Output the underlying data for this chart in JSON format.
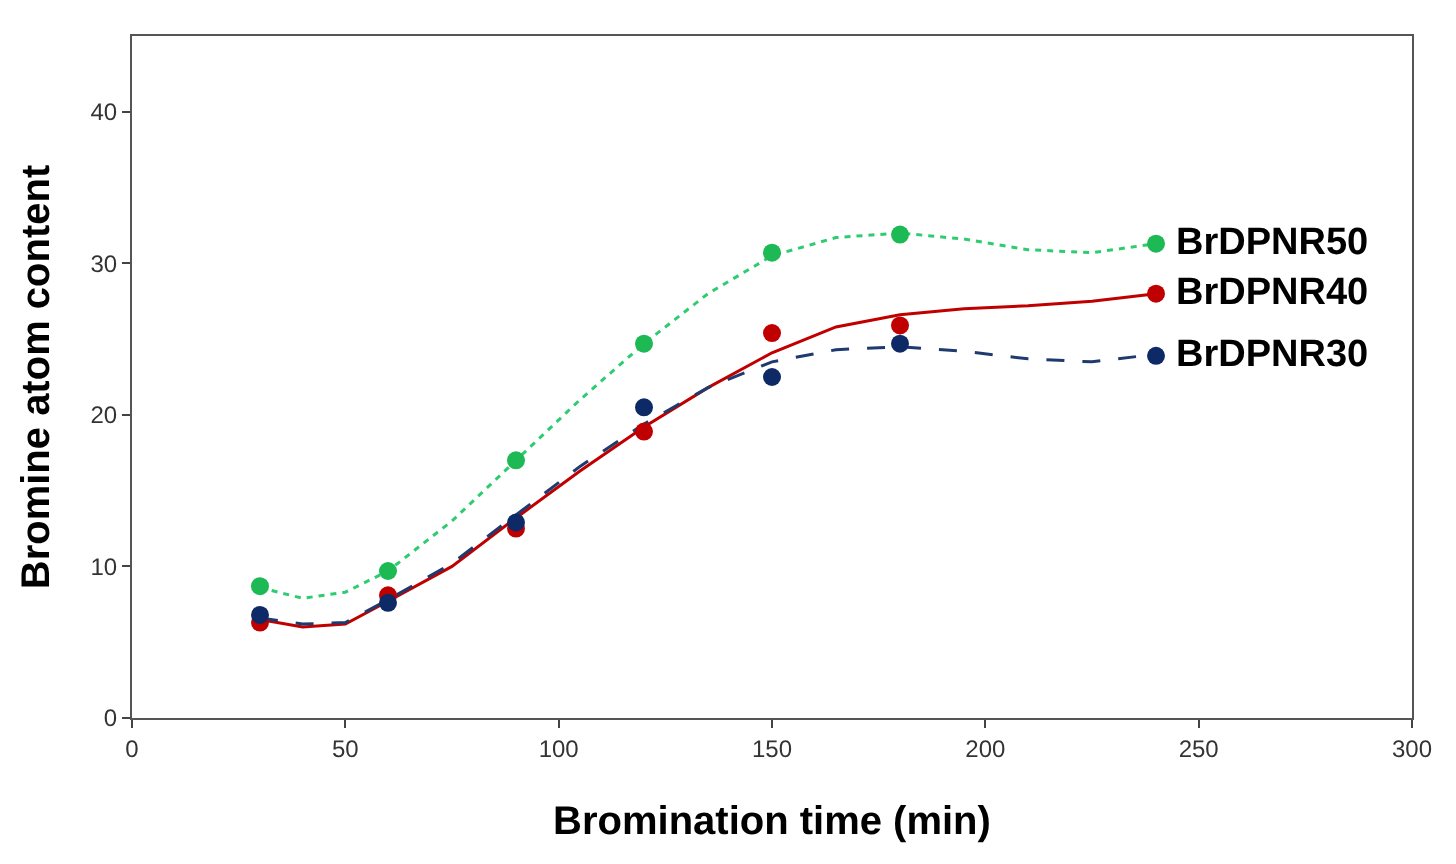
{
  "chart_data": {
    "type": "scatter",
    "xlabel": "Bromination time (min)",
    "ylabel": "Bromine atom content",
    "xlim": [
      0,
      300
    ],
    "ylim": [
      0,
      45
    ],
    "xticks": [
      0,
      50,
      100,
      150,
      200,
      250,
      300
    ],
    "yticks": [
      0,
      10,
      20,
      30,
      40
    ],
    "legend": false,
    "marker": "circle",
    "series": [
      {
        "type": "line",
        "color": "#2ecc71",
        "line_style": "dotted",
        "marker": "none",
        "x": [
          30,
          40,
          50,
          60,
          75,
          90,
          105,
          120,
          135,
          150,
          165,
          180,
          195,
          210,
          225,
          240
        ],
        "values": [
          8.6,
          7.9,
          8.3,
          9.7,
          13,
          17.0,
          21,
          24.7,
          28,
          30.5,
          31.7,
          32.0,
          31.6,
          30.9,
          30.7,
          31.3
        ]
      },
      {
        "type": "line",
        "color": "#c00000",
        "line_style": "solid",
        "marker": "none",
        "x": [
          30,
          40,
          50,
          60,
          75,
          90,
          105,
          120,
          135,
          150,
          165,
          180,
          195,
          210,
          225,
          240
        ],
        "values": [
          6.5,
          6.0,
          6.2,
          7.7,
          10,
          13.2,
          16.3,
          19.2,
          21.8,
          24.1,
          25.8,
          26.6,
          27,
          27.2,
          27.5,
          28.0
        ]
      },
      {
        "type": "line",
        "color": "#1f3a6e",
        "line_style": "dashed",
        "marker": "none",
        "x": [
          30,
          40,
          50,
          60,
          75,
          90,
          105,
          120,
          135,
          150,
          165,
          180,
          195,
          210,
          225,
          240
        ],
        "values": [
          6.6,
          6.2,
          6.3,
          7.8,
          10.2,
          13.4,
          16.6,
          19.4,
          21.8,
          23.5,
          24.3,
          24.5,
          24.2,
          23.7,
          23.5,
          24.0
        ]
      },
      {
        "name": "BrDPNR50",
        "color": "#1db954",
        "x": [
          30,
          60,
          90,
          120,
          150,
          180,
          240
        ],
        "values": [
          8.7,
          9.7,
          17.0,
          24.7,
          30.7,
          31.9,
          31.3
        ]
      },
      {
        "name": "BrDPNR40",
        "color": "#c00000",
        "x": [
          30,
          60,
          90,
          120,
          150,
          180,
          240
        ],
        "values": [
          6.3,
          8.1,
          12.5,
          18.9,
          25.4,
          25.9,
          28.0
        ]
      },
      {
        "name": "BrDPNR30",
        "color": "#0d2a66",
        "x": [
          30,
          60,
          90,
          120,
          150,
          180,
          240
        ],
        "values": [
          6.8,
          7.6,
          12.9,
          20.5,
          22.5,
          24.7,
          23.9
        ]
      }
    ]
  }
}
